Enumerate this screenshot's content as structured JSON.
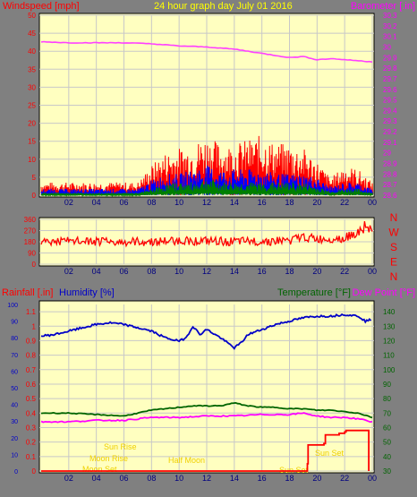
{
  "header": {
    "windspeed_label": "Windspeed [mph]",
    "graph_title": "24 hour graph day   July 01 2016",
    "barometer_label": "Barometer [.in]"
  },
  "direction_letters": [
    "N",
    "W",
    "S",
    "E",
    "N"
  ],
  "lower_header": {
    "rainfall_label": "Rainfall [.in]",
    "humidity_label": "Humidity [%]",
    "temperature_label": "Temperature [°F]",
    "dewpoint_label": "Dew Point [°F]"
  },
  "annotations": {
    "sun_rise": "Sun Rise",
    "sun_set": "Sun Set",
    "moon_rise": "Moon Rise",
    "moon_set": "Moon Set",
    "moon_phase": "Half Moon",
    "sun_set_2": "Sun Set"
  },
  "colors": {
    "plot_bg": "#ffffc0",
    "panel_bg": "#808080",
    "title_yellow": "#ffff00",
    "wind_red": "#ff0000",
    "wind_blue": "#0000ff",
    "wind_green": "#008000",
    "barometer": "#ff40ff",
    "humidity": "#0000c8",
    "temperature": "#006400",
    "dewpoint": "#ff00ff",
    "rain": "#ff0000"
  },
  "chart_data": [
    {
      "type": "line",
      "id": "wind-barometer",
      "x_ticks": [
        "02",
        "04",
        "06",
        "08",
        "10",
        "12",
        "14",
        "16",
        "18",
        "20",
        "22",
        "00"
      ],
      "y_left_ticks": [
        "0",
        "5",
        "10",
        "15",
        "20",
        "25",
        "30",
        "35",
        "40",
        "45",
        "50"
      ],
      "y_left_range": [
        0,
        50
      ],
      "y_right_ticks": [
        "28.6",
        "28.7",
        "28.8",
        "28.9",
        "29",
        "29.1",
        "29.2",
        "29.3",
        "29.4",
        "29.5",
        "29.6",
        "29.7",
        "29.8",
        "29.9",
        "30",
        "30.1",
        "30.2",
        "30.3"
      ],
      "y_right_range": [
        28.6,
        30.3
      ],
      "barometer": {
        "x": [
          0,
          2,
          4,
          6,
          8,
          10,
          12,
          14,
          16,
          18,
          19,
          20,
          21,
          22,
          23,
          24
        ],
        "y": [
          30.05,
          30.04,
          30.04,
          30.04,
          30.03,
          30.01,
          30.0,
          29.98,
          29.94,
          29.9,
          29.91,
          29.88,
          29.89,
          29.88,
          29.87,
          29.86
        ]
      },
      "gust_envelope": {
        "x": [
          0,
          2,
          4,
          6,
          7,
          8,
          9,
          10,
          11,
          12,
          13,
          14,
          15,
          16,
          17,
          18,
          19,
          20,
          21,
          22,
          23,
          24
        ],
        "y": [
          3,
          3,
          3,
          3,
          3,
          7,
          10,
          11,
          12,
          14,
          12,
          12,
          13,
          14,
          12,
          12,
          11,
          8,
          4,
          7,
          6,
          3
        ]
      },
      "average_envelope": {
        "x": [
          0,
          2,
          4,
          6,
          7,
          8,
          9,
          10,
          11,
          12,
          13,
          14,
          15,
          16,
          17,
          18,
          19,
          20,
          21,
          22,
          23,
          24
        ],
        "y": [
          1.5,
          1.5,
          1.5,
          1.5,
          1.5,
          3.5,
          5,
          5,
          6,
          7,
          6,
          6,
          6,
          6,
          5,
          5,
          5,
          4,
          2,
          3,
          3,
          1.5
        ]
      },
      "calm_envelope": {
        "x": [
          0,
          2,
          4,
          6,
          7,
          8,
          9,
          10,
          11,
          12,
          13,
          14,
          15,
          16,
          17,
          18,
          19,
          20,
          21,
          22,
          23,
          24
        ],
        "y": [
          0.5,
          0.5,
          0.5,
          0.5,
          0.5,
          1.5,
          2.5,
          3,
          3,
          4,
          3,
          3,
          3,
          3,
          3,
          3,
          3,
          2,
          1,
          1.5,
          1.5,
          0.5
        ]
      }
    },
    {
      "type": "line",
      "id": "wind-direction",
      "x_ticks": [
        "02",
        "04",
        "06",
        "08",
        "10",
        "12",
        "14",
        "16",
        "18",
        "20",
        "22",
        "00"
      ],
      "y_ticks": [
        "0",
        "90",
        "180",
        "270",
        "360"
      ],
      "y_range": [
        0,
        360
      ],
      "direction": {
        "x": [
          0,
          2,
          4,
          6,
          7,
          8,
          10,
          12,
          14,
          16,
          18,
          19,
          20,
          22,
          23,
          24
        ],
        "y": [
          180,
          185,
          180,
          175,
          180,
          180,
          190,
          185,
          180,
          185,
          190,
          220,
          200,
          210,
          260,
          280
        ]
      }
    },
    {
      "type": "line",
      "id": "rain-humidity-temp",
      "x_ticks": [
        "02",
        "04",
        "06",
        "08",
        "10",
        "12",
        "14",
        "16",
        "18",
        "20",
        "22",
        "00"
      ],
      "y_humidity_ticks": [
        "0",
        "10",
        "20",
        "30",
        "40",
        "50",
        "60",
        "70",
        "80",
        "90",
        "100"
      ],
      "y_humidity_range": [
        0,
        100
      ],
      "y_rain_ticks": [
        "0",
        "0.1",
        "0.2",
        "0.3",
        "0.4",
        "0.5",
        "0.6",
        "0.7",
        "0.8",
        "0.9",
        "1",
        "1.1"
      ],
      "y_rain_range": [
        0,
        1.15
      ],
      "y_temp_ticks": [
        "30",
        "40",
        "50",
        "60",
        "70",
        "80",
        "90",
        "100",
        "110",
        "120",
        "130",
        "140"
      ],
      "y_temp_range": [
        30,
        145
      ],
      "humidity": {
        "x": [
          0,
          1,
          2,
          3,
          4,
          5,
          6,
          7,
          8,
          9,
          10,
          10.5,
          11,
          11.5,
          12,
          13,
          14,
          14.5,
          15,
          16,
          17,
          18,
          19,
          20,
          21,
          22,
          23,
          23.5,
          24
        ],
        "y": [
          81,
          82,
          84,
          86,
          88,
          89,
          88,
          86,
          84,
          80,
          78,
          80,
          87,
          82,
          85,
          80,
          74,
          77,
          82,
          85,
          88,
          90,
          92,
          93,
          93,
          94,
          93,
          90,
          91
        ]
      },
      "temperature": {
        "x": [
          0,
          2,
          4,
          6,
          8,
          10,
          11,
          12,
          13,
          14,
          15,
          16,
          17,
          18,
          19,
          20,
          21,
          22,
          23,
          24
        ],
        "y": [
          70,
          70,
          69,
          68,
          72,
          74,
          75,
          75,
          75,
          77,
          75,
          74,
          74,
          73,
          73,
          72,
          72,
          71,
          70,
          67
        ]
      },
      "dewpoint": {
        "x": [
          0,
          2,
          4,
          6,
          8,
          10,
          12,
          14,
          16,
          18,
          19,
          20,
          21,
          22,
          23,
          24
        ],
        "y": [
          64,
          64,
          65,
          65,
          67,
          67,
          68,
          68,
          69,
          69,
          70,
          68,
          67,
          67,
          66,
          64
        ]
      },
      "rainfall": {
        "x": [
          0,
          19.0,
          19.3,
          19.35,
          20.5,
          20.6,
          21.5,
          21.6,
          22.0,
          22.1,
          23.7,
          23.75
        ],
        "y": [
          0,
          0,
          0.05,
          0.18,
          0.19,
          0.25,
          0.25,
          0.26,
          0.27,
          0.28,
          0.28,
          0.0
        ]
      }
    }
  ]
}
